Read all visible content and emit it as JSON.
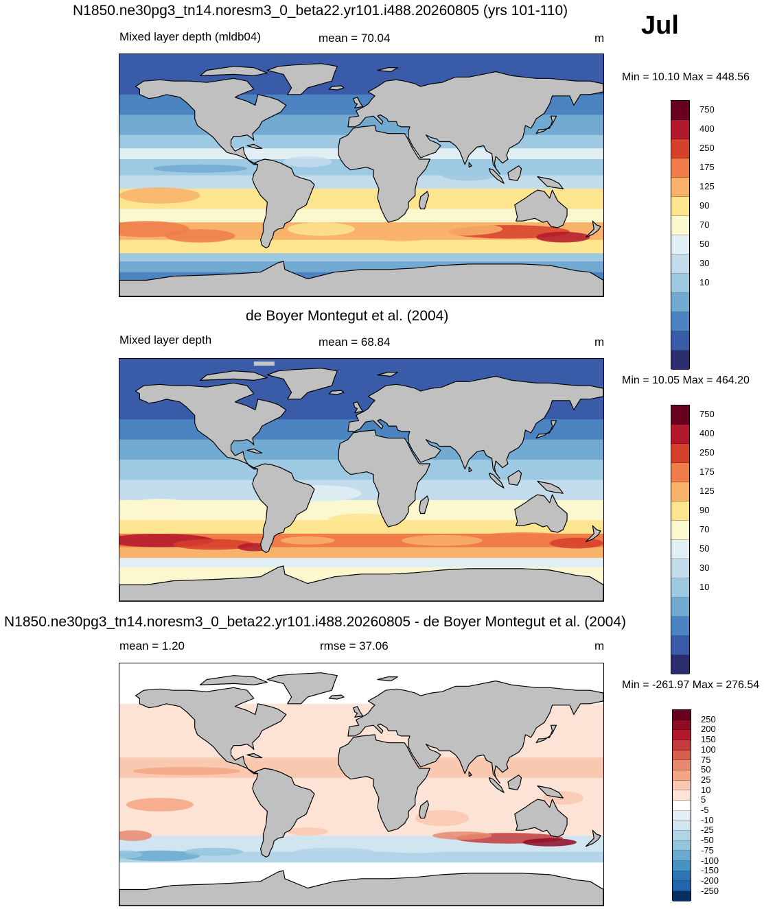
{
  "header": {
    "title": "N1850.ne30pg3_tn14.noresm3_0_beta22.yr101.i488.20260805 (yrs 101-110)",
    "month": "Jul"
  },
  "panels": [
    {
      "id": "model",
      "left_label": "Mixed layer depth (mldb04)",
      "stat_label": "mean =  70.04",
      "unit": "m",
      "minmax": "Min =  10.10 Max = 448.56",
      "colorbar_labels": [
        "750",
        "400",
        "250",
        "175",
        "125",
        "90",
        "70",
        "50",
        "30",
        "10"
      ],
      "colorbar_colors": [
        "#67001f",
        "#b2182b",
        "#d6402b",
        "#f07c4a",
        "#f8b26a",
        "#fde48e",
        "#fbf7cf",
        "#e1eff4",
        "#c2dcec",
        "#9ec9e2",
        "#72aad2",
        "#4b84c0",
        "#3a5ba8",
        "#2b2d6e"
      ]
    },
    {
      "id": "obs",
      "section_title": "de Boyer Montegut et al. (2004)",
      "left_label": "Mixed layer depth",
      "stat_label": "mean =  68.84",
      "unit": "m",
      "minmax": "Min =  10.05 Max = 464.20",
      "colorbar_labels": [
        "750",
        "400",
        "250",
        "175",
        "125",
        "90",
        "70",
        "50",
        "30",
        "10"
      ],
      "colorbar_colors": [
        "#67001f",
        "#b2182b",
        "#d6402b",
        "#f07c4a",
        "#f8b26a",
        "#fde48e",
        "#fbf7cf",
        "#e1eff4",
        "#c2dcec",
        "#9ec9e2",
        "#72aad2",
        "#4b84c0",
        "#3a5ba8",
        "#2b2d6e"
      ]
    },
    {
      "id": "diff",
      "section_title": "N1850.ne30pg3_tn14.noresm3_0_beta22.yr101.i488.20260805 - de Boyer Montegut et al. (2004)",
      "left_label": "mean =   1.20",
      "stat_label": "rmse =  37.06",
      "unit": "m",
      "minmax": "Min = -261.97 Max = 276.54",
      "colorbar_labels": [
        "250",
        "200",
        "150",
        "100",
        "75",
        "50",
        "25",
        "10",
        "5",
        "-5",
        "-10",
        "-25",
        "-50",
        "-75",
        "-100",
        "-150",
        "-200",
        "-250"
      ],
      "colorbar_colors": [
        "#67001f",
        "#8e0c25",
        "#b2182b",
        "#c43c3c",
        "#d6604d",
        "#e6896e",
        "#f4a582",
        "#f9c8b0",
        "#fde3d6",
        "#ffffff",
        "#e3eef5",
        "#d1e5f0",
        "#b2d4e7",
        "#92c5de",
        "#6aaad0",
        "#4393c3",
        "#2f75b4",
        "#2166ac",
        "#053061"
      ]
    }
  ]
}
